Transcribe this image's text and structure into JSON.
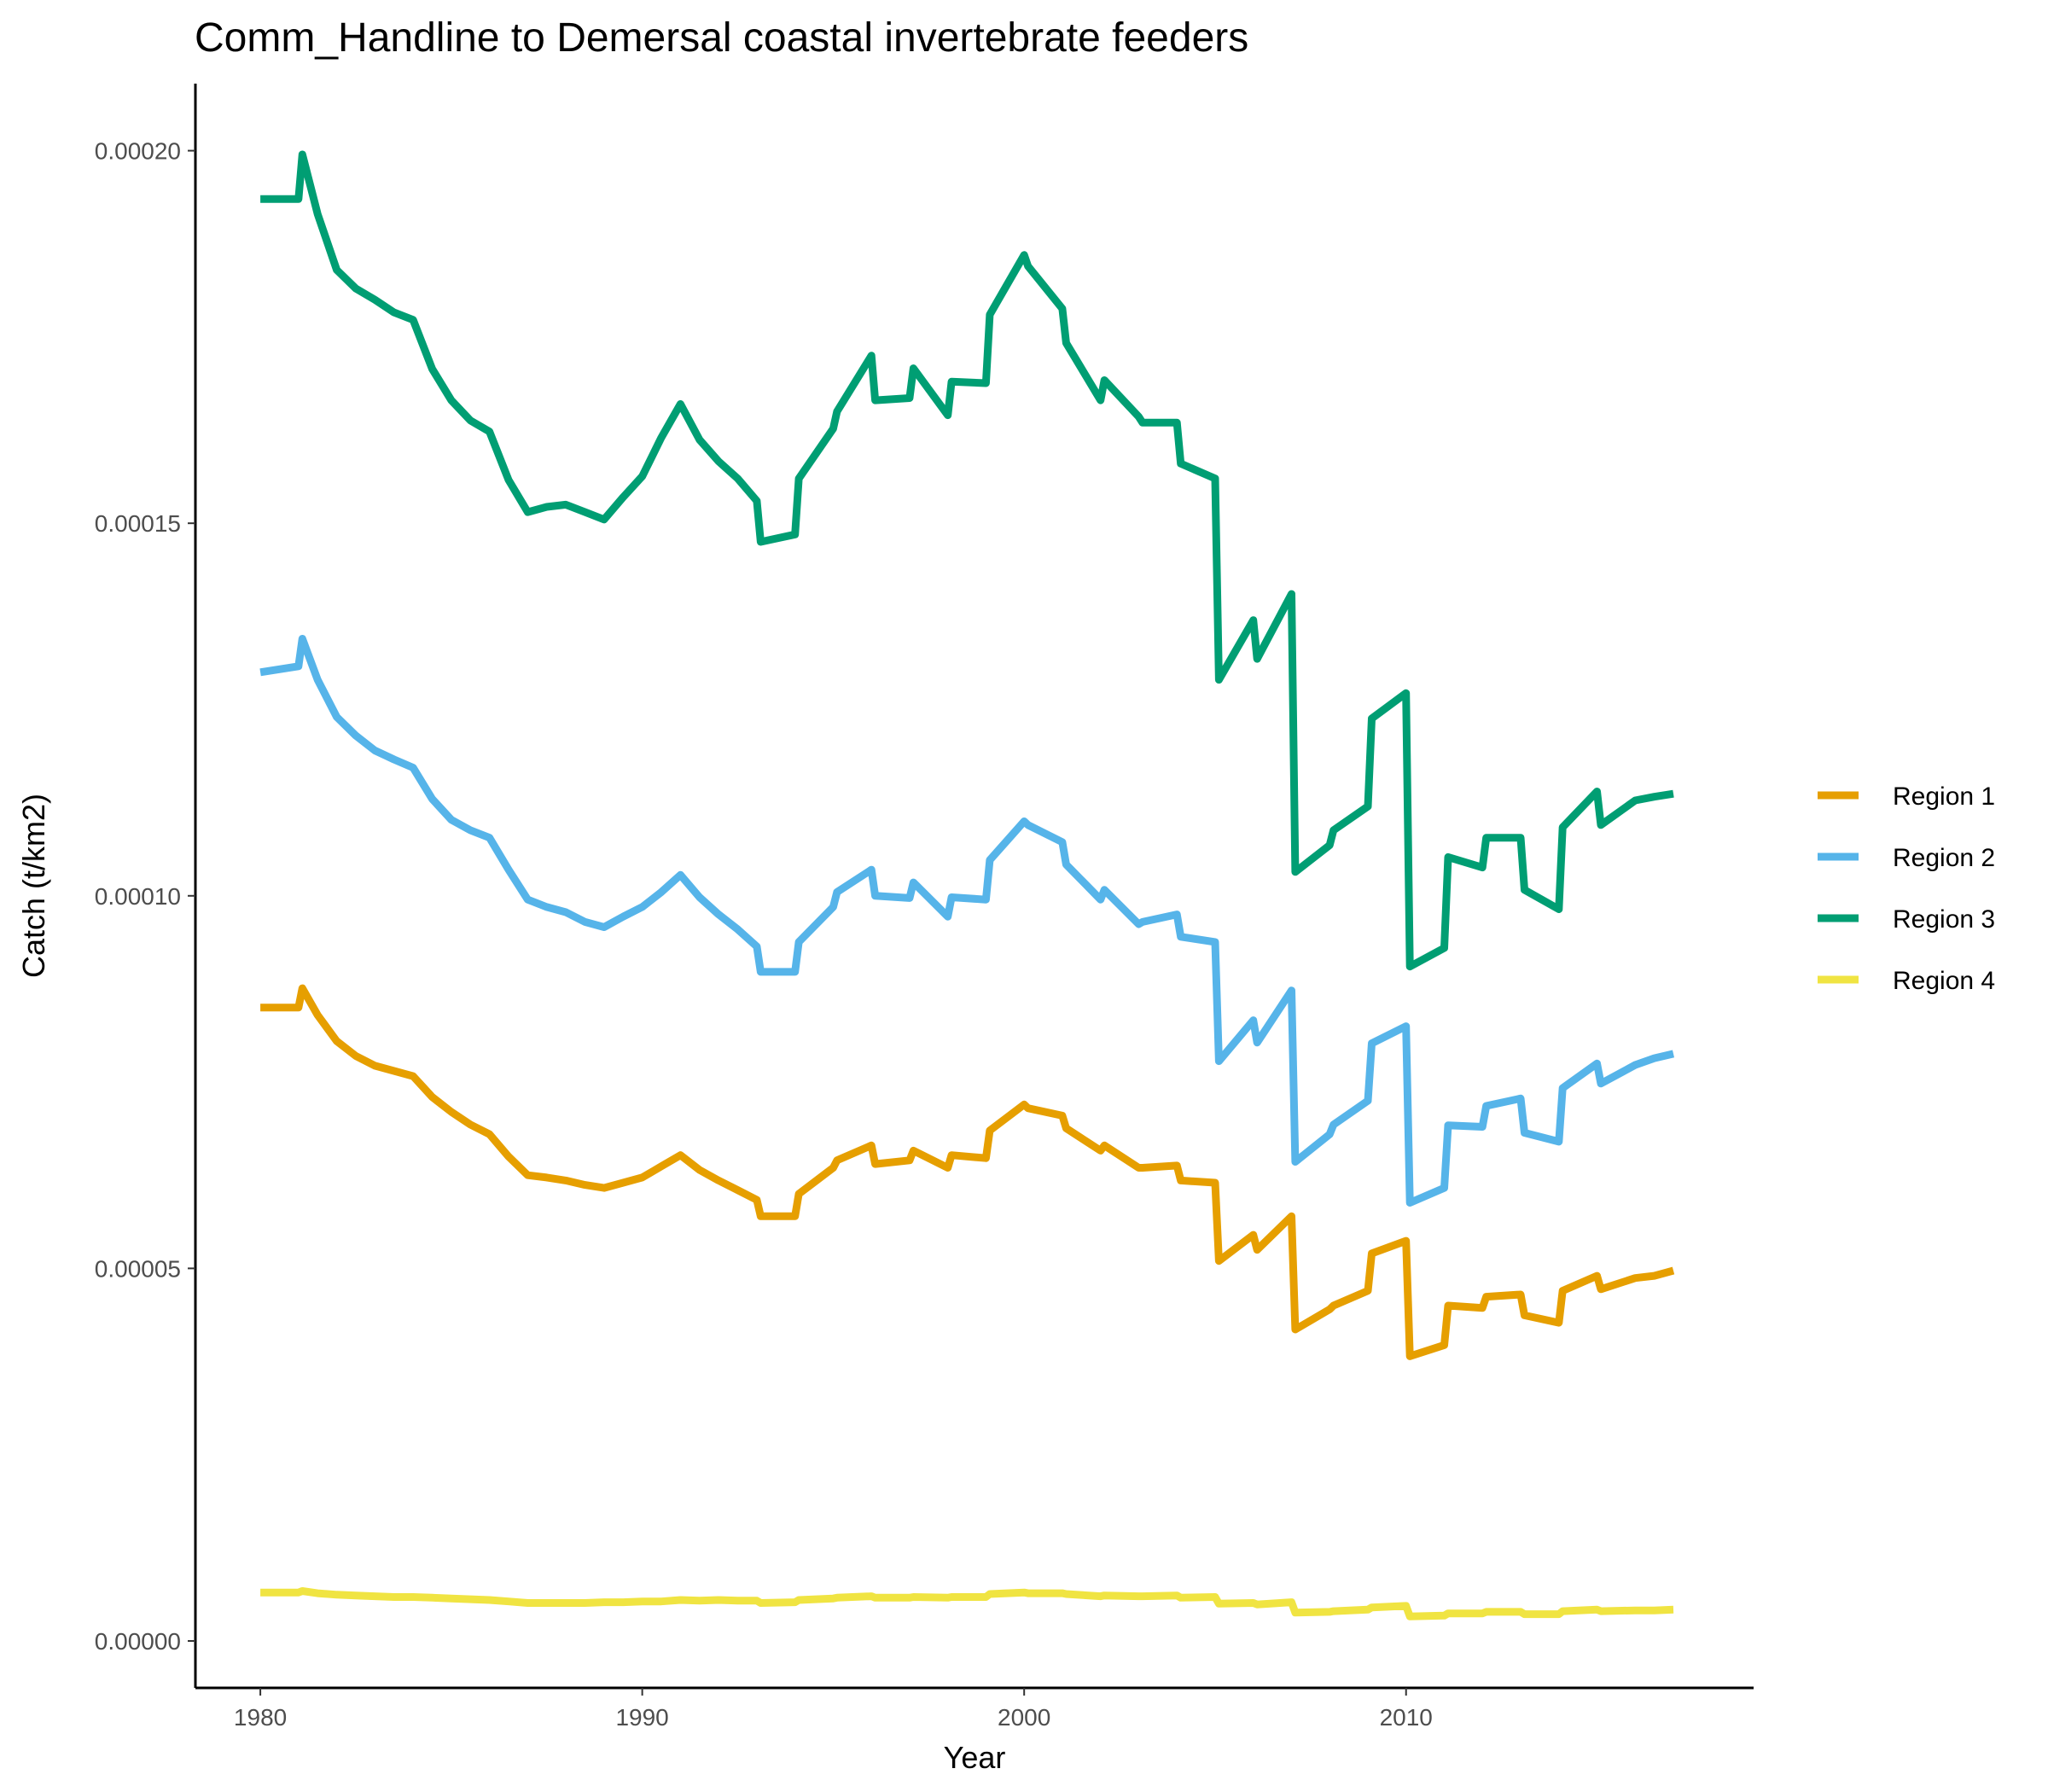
{
  "chart_data": {
    "type": "line",
    "title": "Comm_Handline to Demersal coastal invertebrate feeders",
    "xlabel": "Year",
    "ylabel": "Catch (t/km2)",
    "xlim": [
      1978.3,
      2019.1
    ],
    "ylim": [
      -6.3e-06,
      0.000209
    ],
    "x_ticks": [
      1980,
      1990,
      2000,
      2010
    ],
    "x_tick_labels": [
      "1980",
      "1990",
      "2000",
      "2010"
    ],
    "y_ticks": [
      0.0,
      5e-05,
      0.0001,
      0.00015,
      0.0002
    ],
    "y_tick_labels": [
      "0.00000",
      "0.00005",
      "0.00010",
      "0.00015",
      "0.00020"
    ],
    "grid": false,
    "legend_position": "right",
    "x": [
      1980.0,
      1981.0,
      1981.1,
      1981.5,
      1982.0,
      1982.5,
      1983.0,
      1983.5,
      1984.0,
      1984.5,
      1985.0,
      1985.5,
      1986.0,
      1986.5,
      1987.0,
      1987.5,
      1988.0,
      1988.5,
      1989.0,
      1989.5,
      1990.0,
      1990.5,
      1991.0,
      1991.5,
      1992.0,
      1992.5,
      1993.0,
      1993.1,
      1994.0,
      1994.1,
      1995.0,
      1995.1,
      1996.0,
      1996.1,
      1997.0,
      1997.1,
      1998.0,
      1998.1,
      1999.0,
      1999.1,
      2000.0,
      2000.1,
      2001.0,
      2001.1,
      2002.0,
      2002.1,
      2003.0,
      2003.1,
      2004.0,
      2004.1,
      2005.0,
      2005.1,
      2006.0,
      2006.1,
      2007.0,
      2007.1,
      2008.0,
      2008.1,
      2009.0,
      2009.1,
      2010.0,
      2010.1,
      2011.0,
      2011.1,
      2012.0,
      2012.1,
      2013.0,
      2013.1,
      2014.0,
      2014.1,
      2015.0,
      2015.1,
      2016.0,
      2016.5,
      2017.0
    ],
    "series": [
      {
        "name": "Region 1",
        "color": "#E69F00",
        "values": [
          8.5e-05,
          8.5e-05,
          8.76e-05,
          8.4e-05,
          8.05e-05,
          7.85e-05,
          7.72e-05,
          7.65e-05,
          7.58e-05,
          7.3e-05,
          7.1e-05,
          6.93e-05,
          6.8e-05,
          6.5e-05,
          6.25e-05,
          6.22e-05,
          6.18e-05,
          6.12e-05,
          6.08e-05,
          6.15e-05,
          6.22e-05,
          6.37e-05,
          6.52e-05,
          6.32e-05,
          6.18e-05,
          6.05e-05,
          5.92e-05,
          5.7e-05,
          5.7e-05,
          6e-05,
          6.35e-05,
          6.45e-05,
          6.65e-05,
          6.4e-05,
          6.45e-05,
          6.58e-05,
          6.35e-05,
          6.52e-05,
          6.48e-05,
          6.85e-05,
          7.2e-05,
          7.15e-05,
          7.05e-05,
          6.88e-05,
          6.58e-05,
          6.65e-05,
          6.35e-05,
          6.35e-05,
          6.38e-05,
          6.18e-05,
          6.15e-05,
          5.1e-05,
          5.45e-05,
          5.25e-05,
          5.7e-05,
          4.18e-05,
          4.45e-05,
          4.5e-05,
          4.7e-05,
          5.2e-05,
          5.37e-05,
          3.82e-05,
          3.97e-05,
          4.5e-05,
          4.47e-05,
          4.62e-05,
          4.65e-05,
          4.37e-05,
          4.27e-05,
          4.7e-05,
          4.9e-05,
          4.72e-05,
          4.87e-05,
          4.9e-05,
          4.97e-05
        ]
      },
      {
        "name": "Region 2",
        "color": "#56B4E9",
        "values": [
          0.00013,
          0.0001308,
          0.0001345,
          0.000129,
          0.000124,
          0.0001215,
          0.0001195,
          0.0001183,
          0.0001172,
          0.000113,
          0.0001102,
          0.0001088,
          0.0001078,
          0.0001035,
          9.95e-05,
          9.85e-05,
          9.78e-05,
          9.65e-05,
          9.58e-05,
          9.72e-05,
          9.85e-05,
          0.0001005,
          0.0001028,
          9.98e-05,
          9.75e-05,
          9.55e-05,
          9.32e-05,
          8.98e-05,
          8.98e-05,
          9.38e-05,
          9.85e-05,
          0.0001005,
          0.0001035,
          0.0001,
          9.97e-05,
          0.0001018,
          9.72e-05,
          9.98e-05,
          9.95e-05,
          0.0001048,
          0.00011,
          0.0001095,
          0.0001072,
          0.0001042,
          9.95e-05,
          0.0001008,
          9.62e-05,
          9.65e-05,
          9.75e-05,
          9.45e-05,
          9.38e-05,
          7.78e-05,
          8.33e-05,
          8.03e-05,
          8.73e-05,
          6.43e-05,
          6.8e-05,
          6.93e-05,
          7.25e-05,
          8.02e-05,
          8.25e-05,
          5.88e-05,
          6.08e-05,
          6.92e-05,
          6.9e-05,
          7.18e-05,
          7.28e-05,
          6.82e-05,
          6.7e-05,
          7.42e-05,
          7.75e-05,
          7.48e-05,
          7.73e-05,
          7.82e-05,
          7.88e-05
        ]
      },
      {
        "name": "Region 3",
        "color": "#009E73",
        "values": [
          0.0001935,
          0.0001935,
          0.0001995,
          0.0001915,
          0.000184,
          0.0001815,
          0.00018,
          0.0001783,
          0.0001773,
          0.0001707,
          0.0001665,
          0.0001638,
          0.0001623,
          0.0001558,
          0.0001515,
          0.0001522,
          0.0001525,
          0.0001515,
          0.0001505,
          0.0001535,
          0.0001563,
          0.0001615,
          0.000166,
          0.0001612,
          0.0001583,
          0.000156,
          0.000153,
          0.0001475,
          0.0001485,
          0.000156,
          0.0001627,
          0.000165,
          0.0001725,
          0.0001665,
          0.0001668,
          0.0001708,
          0.0001645,
          0.000169,
          0.0001688,
          0.000178,
          0.000186,
          0.0001845,
          0.0001788,
          0.0001742,
          0.0001665,
          0.0001692,
          0.0001643,
          0.0001635,
          0.0001635,
          0.000158,
          0.000156,
          0.000129,
          0.000137,
          0.0001318,
          0.0001405,
          0.0001032,
          0.0001068,
          0.0001088,
          0.000112,
          0.0001238,
          0.0001272,
          9.05e-05,
          9.3e-05,
          0.0001052,
          0.0001038,
          0.0001078,
          0.0001078,
          0.0001008,
          9.82e-05,
          0.0001092,
          0.000114,
          0.0001095,
          0.0001128,
          0.0001133,
          0.0001137
        ]
      },
      {
        "name": "Region 4",
        "color": "#F0E442",
        "values": [
          6.5e-06,
          6.5e-06,
          6.7e-06,
          6.4e-06,
          6.2e-06,
          6.1e-06,
          6e-06,
          5.9e-06,
          5.9e-06,
          5.8e-06,
          5.7e-06,
          5.6e-06,
          5.5e-06,
          5.3e-06,
          5.1e-06,
          5.1e-06,
          5.1e-06,
          5.1e-06,
          5.2e-06,
          5.2e-06,
          5.3e-06,
          5.3e-06,
          5.5e-06,
          5.4e-06,
          5.5e-06,
          5.4e-06,
          5.4e-06,
          5.1e-06,
          5.2e-06,
          5.5e-06,
          5.7e-06,
          5.8e-06,
          6e-06,
          5.8e-06,
          5.8e-06,
          5.9e-06,
          5.8e-06,
          5.9e-06,
          5.9e-06,
          6.3e-06,
          6.5e-06,
          6.4e-06,
          6.4e-06,
          6.3e-06,
          6e-06,
          6.1e-06,
          6e-06,
          6e-06,
          6.1e-06,
          5.8e-06,
          5.9e-06,
          5e-06,
          5.1e-06,
          4.9e-06,
          5.2e-06,
          3.8e-06,
          3.9e-06,
          4e-06,
          4.2e-06,
          4.5e-06,
          4.7e-06,
          3.3e-06,
          3.4e-06,
          3.7e-06,
          3.7e-06,
          3.9e-06,
          3.9e-06,
          3.6e-06,
          3.6e-06,
          4e-06,
          4.2e-06,
          4e-06,
          4.1e-06,
          4.1e-06,
          4.2e-06
        ]
      }
    ]
  }
}
